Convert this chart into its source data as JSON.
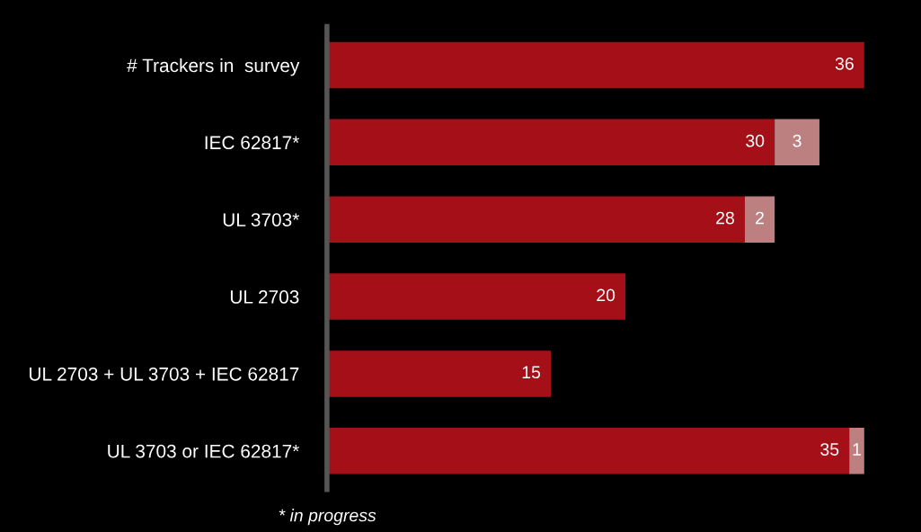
{
  "chart_data": {
    "type": "bar",
    "orientation": "horizontal",
    "stacked": true,
    "data_labels": true,
    "grid": false,
    "legend": false,
    "tick_labels": "y",
    "categories": [
      "# Trackers in  survey",
      "IEC 62817*",
      "UL 3703*",
      "UL 2703",
      "UL 2703 + UL 3703 + IEC 62817",
      "UL 3703 or IEC 62817*"
    ],
    "series": [
      {
        "color": "#a50f18",
        "values": [
          36,
          30,
          28,
          20,
          15,
          35
        ]
      },
      {
        "color": "#bc8080",
        "values": [
          null,
          3,
          2,
          null,
          null,
          1
        ]
      }
    ],
    "annotations": [
      "* in progress"
    ]
  }
}
